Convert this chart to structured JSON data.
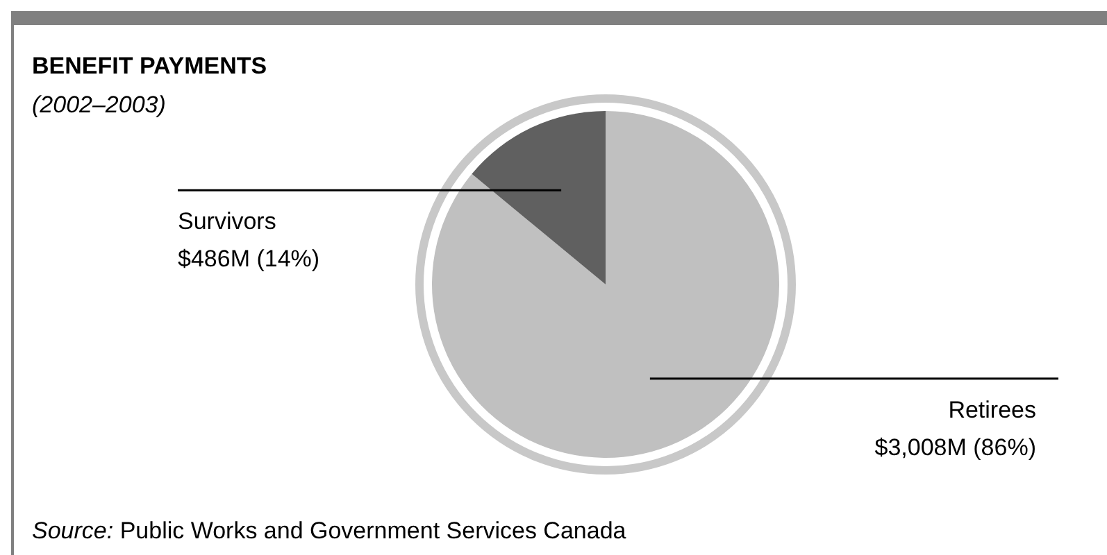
{
  "chart_data": {
    "type": "pie",
    "title": "BENEFIT PAYMENTS",
    "subtitle": "(2002–2003)",
    "categories": [
      "Retirees",
      "Survivors"
    ],
    "values": [
      86,
      14
    ],
    "colors": [
      "#c0c0c0",
      "#606060"
    ],
    "value_labels": [
      "$3,008M (86%)",
      "$486M (14%)"
    ],
    "annotations": [
      "Source: Public Works and Government Services Canada"
    ]
  }
}
